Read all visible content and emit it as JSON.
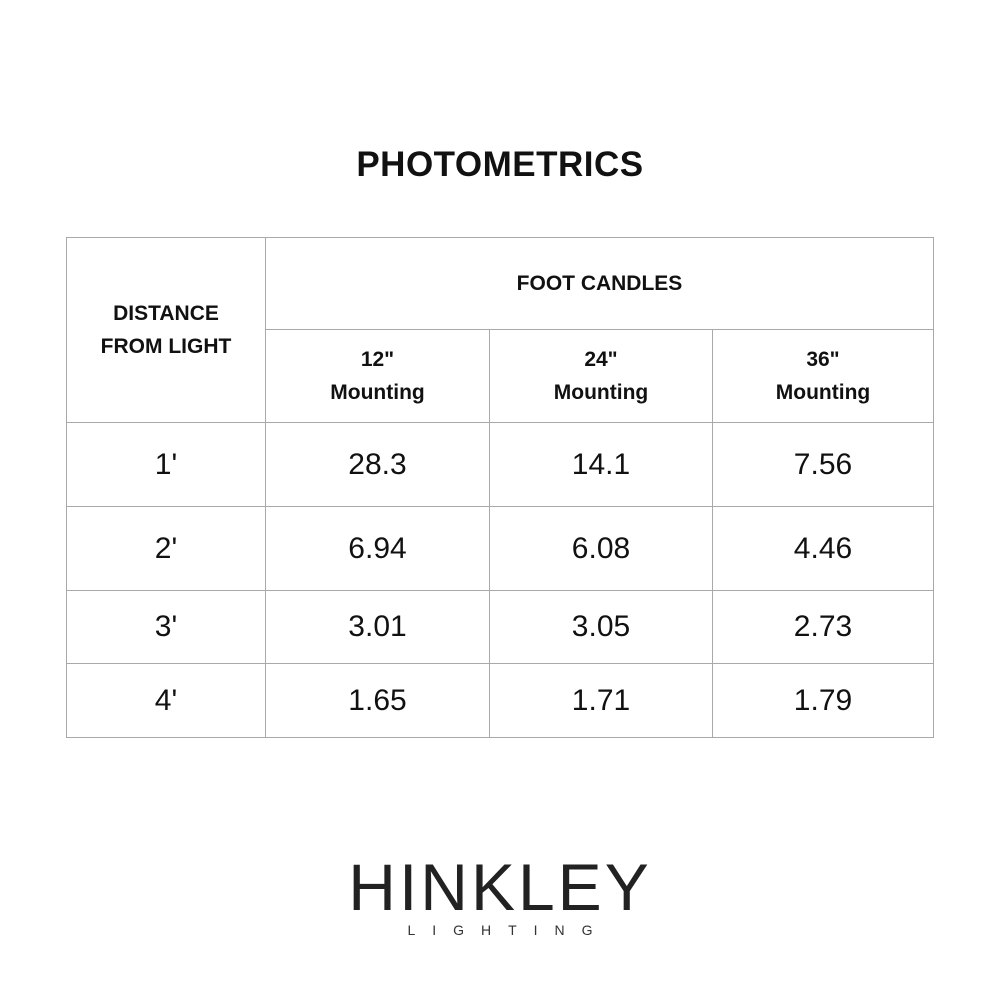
{
  "title": "PHOTOMETRICS",
  "table": {
    "row_header": "DISTANCE FROM LIGHT",
    "group_header": "FOOT CANDLES",
    "columns": [
      {
        "size": "12\"",
        "label": "Mounting"
      },
      {
        "size": "24\"",
        "label": "Mounting"
      },
      {
        "size": "36\"",
        "label": "Mounting"
      }
    ],
    "rows": [
      {
        "distance": "1'",
        "values": [
          "28.3",
          "14.1",
          "7.56"
        ]
      },
      {
        "distance": "2'",
        "values": [
          "6.94",
          "6.08",
          "4.46"
        ]
      },
      {
        "distance": "3'",
        "values": [
          "3.01",
          "3.05",
          "2.73"
        ]
      },
      {
        "distance": "4'",
        "values": [
          "1.65",
          "1.71",
          "1.79"
        ]
      }
    ]
  },
  "logo": {
    "main": "HINKLEY",
    "sub": "LIGHTING"
  }
}
